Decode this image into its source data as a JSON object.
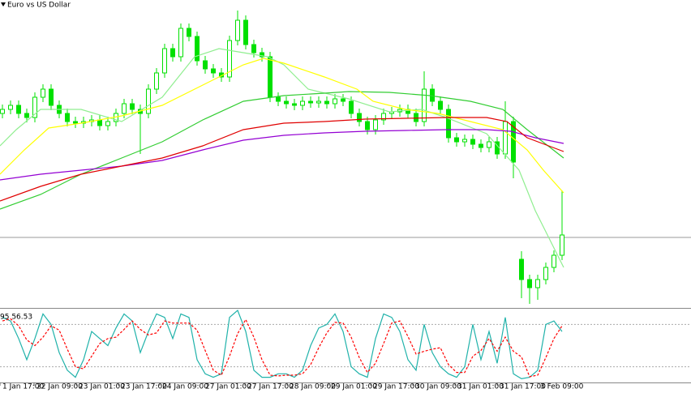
{
  "chart_data": [
    {
      "type": "candlestick",
      "title": "Euro vs US Dollar",
      "color": "#00e000",
      "x": [
        0,
        1,
        2,
        3,
        4,
        5,
        6,
        7,
        8,
        9,
        10,
        11,
        12,
        13,
        14,
        15,
        16,
        17,
        18,
        19,
        20,
        21,
        22,
        23,
        24,
        25,
        26,
        27,
        28,
        29,
        30,
        31,
        32,
        33,
        34,
        35,
        36,
        37,
        38,
        39,
        40,
        41,
        42,
        43,
        44,
        45,
        46,
        47,
        48,
        49,
        50,
        51,
        52,
        53,
        54,
        55,
        56,
        57,
        58,
        59,
        60,
        61,
        62,
        63,
        64,
        65,
        66,
        67,
        68,
        69
      ],
      "open": [
        240,
        245,
        250,
        240,
        235,
        260,
        270,
        250,
        240,
        230,
        228,
        230,
        232,
        225,
        230,
        240,
        252,
        245,
        240,
        270,
        290,
        320,
        310,
        345,
        335,
        305,
        295,
        290,
        285,
        330,
        355,
        325,
        315,
        310,
        260,
        255,
        252,
        250,
        255,
        253,
        255,
        252,
        258,
        255,
        240,
        230,
        220,
        232,
        240,
        242,
        245,
        240,
        230,
        270,
        255,
        245,
        210,
        205,
        208,
        202,
        198,
        205,
        190,
        230,
        60,
        35,
        25,
        35,
        50,
        65
      ],
      "high": [
        251,
        256,
        256,
        246,
        266,
        276,
        276,
        256,
        246,
        236,
        236,
        238,
        238,
        236,
        246,
        258,
        258,
        251,
        276,
        296,
        326,
        326,
        351,
        351,
        341,
        311,
        301,
        296,
        336,
        367,
        361,
        331,
        321,
        316,
        266,
        261,
        258,
        261,
        261,
        261,
        261,
        264,
        264,
        261,
        246,
        236,
        238,
        246,
        248,
        251,
        251,
        246,
        292,
        276,
        261,
        251,
        216,
        214,
        214,
        208,
        211,
        211,
        255,
        236,
        70,
        41,
        41,
        56,
        71,
        145
      ],
      "low": [
        234,
        239,
        234,
        229,
        229,
        254,
        244,
        234,
        224,
        222,
        222,
        224,
        219,
        219,
        224,
        234,
        239,
        190,
        234,
        264,
        284,
        304,
        304,
        329,
        299,
        289,
        284,
        279,
        279,
        324,
        319,
        309,
        304,
        254,
        249,
        246,
        244,
        244,
        247,
        247,
        246,
        246,
        249,
        234,
        224,
        214,
        214,
        226,
        234,
        236,
        234,
        224,
        224,
        249,
        239,
        204,
        199,
        199,
        196,
        192,
        192,
        184,
        184,
        160,
        12,
        5,
        10,
        29,
        44,
        59
      ],
      "close": [
        245,
        250,
        240,
        235,
        260,
        270,
        250,
        240,
        230,
        228,
        230,
        232,
        225,
        230,
        240,
        252,
        245,
        240,
        270,
        290,
        320,
        310,
        345,
        335,
        305,
        295,
        290,
        285,
        330,
        355,
        325,
        315,
        310,
        260,
        255,
        252,
        250,
        255,
        253,
        255,
        252,
        258,
        255,
        240,
        230,
        220,
        232,
        240,
        242,
        245,
        240,
        230,
        270,
        255,
        245,
        210,
        205,
        208,
        202,
        198,
        205,
        190,
        230,
        180,
        35,
        25,
        35,
        50,
        65,
        90
      ],
      "series": [
        {
          "color": "#90ee90",
          "x": [
            -0.3,
            1.7,
            4.7,
            9.7,
            14.7,
            19.7,
            23.7,
            26.7,
            29.7,
            32.7,
            34.7,
            37.7,
            42.7,
            47.7,
            51.7,
            54.7,
            59.7,
            63.7,
            65.7,
            67.7,
            69.2
          ],
          "values": [
            200,
            220,
            245,
            245,
            230,
            260,
            310,
            320,
            315,
            310,
            300,
            270,
            258,
            242,
            245,
            235,
            215,
            170,
            120,
            80,
            50
          ]
        },
        {
          "color": "#32cd32",
          "x": [
            -0.3,
            4.7,
            9.7,
            14.7,
            19.7,
            24.7,
            29.7,
            34.7,
            39.7,
            42.7,
            47.7,
            52.7,
            57.7,
            61.7,
            64.7,
            69.2
          ],
          "values": [
            122,
            140,
            165,
            185,
            205,
            232,
            255,
            262,
            265,
            267,
            266,
            262,
            255,
            245,
            220,
            185
          ]
        },
        {
          "color": "#ffff00",
          "x": [
            -0.3,
            2.7,
            5.7,
            9.7,
            14.7,
            19.7,
            24.7,
            29.7,
            32.2,
            34.7,
            39.7,
            43.7,
            45.7,
            49.7,
            53.7,
            57.7,
            61.7,
            64.7,
            66.7,
            69.2
          ],
          "values": [
            165,
            195,
            222,
            228,
            237,
            250,
            275,
            300,
            308,
            302,
            285,
            270,
            255,
            245,
            240,
            230,
            220,
            195,
            170,
            142
          ]
        },
        {
          "color": "#9400d3",
          "x": [
            -0.3,
            4.7,
            9.7,
            14.7,
            19.7,
            24.7,
            29.7,
            34.7,
            39.7,
            44.7,
            49.7,
            54.7,
            59.7,
            62.7,
            65.7,
            69.2
          ],
          "values": [
            158,
            165,
            170,
            175,
            182,
            195,
            207,
            213,
            216,
            218,
            219,
            220,
            220,
            218,
            210,
            203
          ]
        },
        {
          "color": "#e00000",
          "x": [
            -0.3,
            4.7,
            9.7,
            14.7,
            19.7,
            24.7,
            29.7,
            34.7,
            39.7,
            44.7,
            49.7,
            54.7,
            59.7,
            62.2,
            64.7,
            69.2
          ],
          "values": [
            132,
            150,
            165,
            175,
            185,
            200,
            220,
            228,
            230,
            233,
            234,
            235,
            235,
            230,
            210,
            193
          ]
        }
      ],
      "price_line": 87,
      "xlim": [
        -0.3,
        84.9
      ],
      "ylim": [
        0,
        380
      ]
    },
    {
      "type": "stochastic",
      "label": "95 56.53",
      "levels": [
        20,
        80
      ],
      "xlim": [
        -0.3,
        84.9
      ],
      "ylim": [
        0,
        100
      ],
      "x": [
        0,
        1,
        2,
        3,
        4,
        5,
        6,
        7,
        8,
        9,
        10,
        11,
        12,
        13,
        14,
        15,
        16,
        17,
        18,
        19,
        20,
        21,
        22,
        23,
        24,
        25,
        26,
        27,
        28,
        29,
        30,
        31,
        32,
        33,
        34,
        35,
        36,
        37,
        38,
        39,
        40,
        41,
        42,
        43,
        44,
        45,
        46,
        47,
        48,
        49,
        50,
        51,
        52,
        53,
        54,
        55,
        56,
        57,
        58,
        59,
        60,
        61,
        62,
        63,
        64,
        65,
        66,
        67,
        68,
        69
      ],
      "series": [
        {
          "color": "#20b2aa",
          "values": [
            90,
            85,
            60,
            30,
            60,
            95,
            80,
            40,
            15,
            5,
            30,
            70,
            60,
            50,
            75,
            95,
            85,
            40,
            70,
            95,
            90,
            60,
            95,
            90,
            30,
            10,
            5,
            10,
            90,
            100,
            70,
            15,
            5,
            5,
            10,
            10,
            5,
            15,
            50,
            75,
            80,
            95,
            70,
            20,
            10,
            5,
            60,
            95,
            90,
            70,
            30,
            15,
            80,
            40,
            20,
            10,
            5,
            20,
            80,
            30,
            70,
            25,
            90,
            10,
            3,
            5,
            15,
            80,
            85,
            70
          ]
        },
        {
          "color": "#ff0000",
          "dashed": true,
          "values": [
            85,
            88,
            78,
            58,
            50,
            62,
            78,
            72,
            45,
            20,
            17,
            35,
            53,
            60,
            62,
            73,
            85,
            73,
            65,
            68,
            85,
            82,
            82,
            82,
            72,
            43,
            15,
            8,
            35,
            67,
            87,
            62,
            30,
            8,
            7,
            8,
            8,
            10,
            23,
            47,
            68,
            83,
            82,
            62,
            33,
            12,
            25,
            53,
            82,
            85,
            63,
            38,
            42,
            45,
            47,
            23,
            12,
            12,
            35,
            43,
            60,
            42,
            62,
            42,
            34,
            6,
            8,
            33,
            60,
            78
          ]
        }
      ],
      "xticks": [
        {
          "value": -0.3,
          "label": "1 Jan 17:00"
        },
        {
          "value": 3.9,
          "label": "22 Jan 09:00"
        },
        {
          "value": 9.1,
          "label": "23 Jan 01:00"
        },
        {
          "value": 14.3,
          "label": "23 Jan 17:00"
        },
        {
          "value": 19.4,
          "label": "24 Jan 09:00"
        },
        {
          "value": 24.7,
          "label": "27 Jan 01:00"
        },
        {
          "value": 29.9,
          "label": "27 Jan 17:00"
        },
        {
          "value": 35.1,
          "label": "28 Jan 09:00"
        },
        {
          "value": 40.2,
          "label": "29 Jan 01:00"
        },
        {
          "value": 45.4,
          "label": "29 Jan 17:00"
        },
        {
          "value": 50.6,
          "label": "30 Jan 09:00"
        },
        {
          "value": 55.8,
          "label": "31 Jan 01:00"
        },
        {
          "value": 61,
          "label": "31 Jan 17:00"
        },
        {
          "value": 66,
          "label": "3 Feb 09:00"
        }
      ]
    }
  ]
}
